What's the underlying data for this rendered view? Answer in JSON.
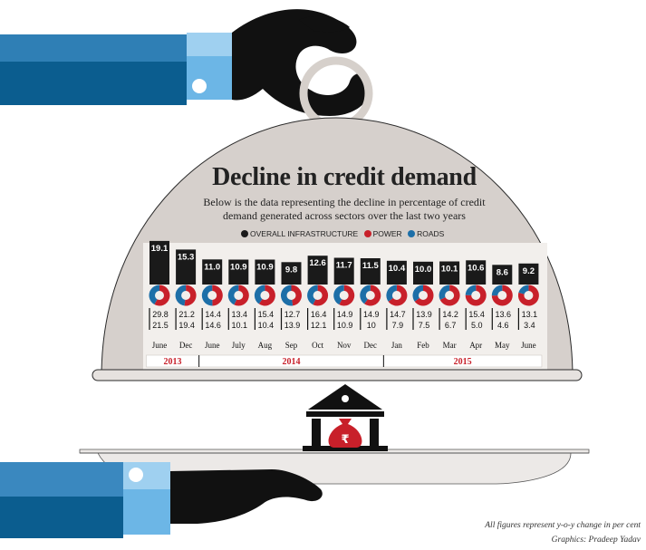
{
  "colors": {
    "infrastructure": "#1a1a1a",
    "power": "#c8202a",
    "roads": "#1d6fa8",
    "cloche": "#d8d3cf",
    "cuff_dark": "#0b5d8f",
    "cuff_light": "#5aa9dc"
  },
  "chart_data": {
    "type": "bar",
    "title": "Decline in credit demand",
    "subtitle": "Below is the data representing the decline in percentage of credit demand generated across sectors over the last two years",
    "legend": [
      "OVERALL INFRASTRUCTURE",
      "POWER",
      "ROADS"
    ],
    "legend_position": "top",
    "categories": [
      "June",
      "Dec",
      "June",
      "July",
      "Aug",
      "Sep",
      "Oct",
      "Nov",
      "Dec",
      "Jan",
      "Feb",
      "Mar",
      "Apr",
      "May",
      "June"
    ],
    "year_groups": [
      {
        "label": "2013",
        "start": 0,
        "end": 1
      },
      {
        "label": "2014",
        "start": 2,
        "end": 8
      },
      {
        "label": "2015",
        "start": 9,
        "end": 14
      }
    ],
    "series": [
      {
        "name": "OVERALL INFRASTRUCTURE",
        "values": [
          19.1,
          15.3,
          11.0,
          10.9,
          10.9,
          9.8,
          12.6,
          11.7,
          11.5,
          10.4,
          10.0,
          10.1,
          10.6,
          8.6,
          9.2
        ]
      },
      {
        "name": "POWER",
        "values": [
          29.8,
          21.2,
          14.4,
          13.4,
          15.4,
          12.7,
          16.4,
          14.9,
          14.9,
          14.7,
          13.9,
          14.2,
          15.4,
          13.6,
          13.1
        ]
      },
      {
        "name": "ROADS",
        "values": [
          21.5,
          19.4,
          14.6,
          10.1,
          10.4,
          13.9,
          12.1,
          10.9,
          10,
          7.9,
          7.5,
          6.7,
          5.0,
          4.6,
          3.4
        ]
      }
    ],
    "labels": {
      "infra": [
        "19.1",
        "15.3",
        "11.0",
        "10.9",
        "10.9",
        "9.8",
        "12.6",
        "11.7",
        "11.5",
        "10.4",
        "10.0",
        "10.1",
        "10.6",
        "8.6",
        "9.2"
      ],
      "power": [
        "29.8",
        "21.2",
        "14.4",
        "13.4",
        "15.4",
        "12.7",
        "16.4",
        "14.9",
        "14.9",
        "14.7",
        "13.9",
        "14.2",
        "15.4",
        "13.6",
        "13.1"
      ],
      "roads": [
        "21.5",
        "19.4",
        "14.6",
        "10.1",
        "10.4",
        "13.9",
        "12.1",
        "10.9",
        "10",
        "7.9",
        "7.5",
        "6.7",
        "5.0",
        "4.6",
        "3.4"
      ]
    }
  },
  "footnote": "All figures represent y-o-y change in per cent",
  "credit": "Graphics: Pradeep Yadav"
}
